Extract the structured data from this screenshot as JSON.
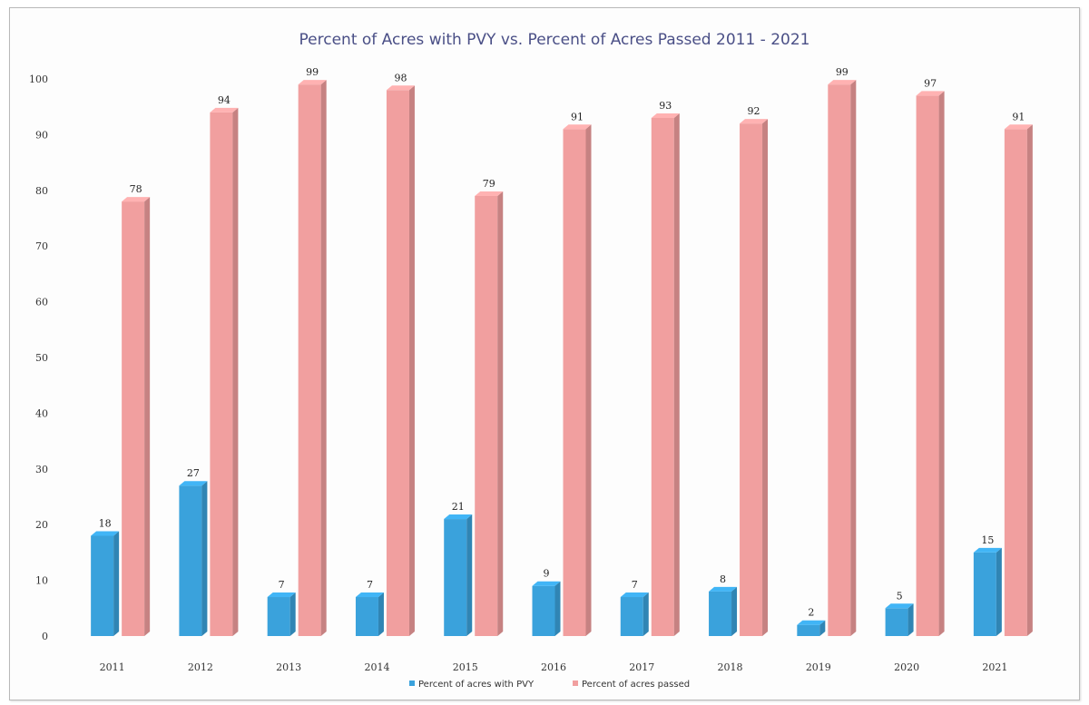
{
  "chart_data": {
    "type": "bar",
    "title": "Percent of Acres with PVY vs. Percent of Acres Passed 2011 - 2021",
    "categories": [
      "2011",
      "2012",
      "2013",
      "2014",
      "2015",
      "2016",
      "2017",
      "2018",
      "2019",
      "2020",
      "2021"
    ],
    "series": [
      {
        "name": "Percent of acres with PVY",
        "color": "#3aa2dc",
        "values": [
          18,
          27,
          7,
          7,
          21,
          9,
          7,
          8,
          2,
          5,
          15
        ]
      },
      {
        "name": "Percent of acres passed",
        "color": "#f19f9f",
        "values": [
          78,
          94,
          99,
          98,
          79,
          91,
          93,
          92,
          99,
          97,
          91
        ]
      }
    ],
    "ylim": [
      0,
      100
    ],
    "yticks": [
      0,
      10,
      20,
      30,
      40,
      50,
      60,
      70,
      80,
      90,
      100
    ],
    "grid": false,
    "legend_position": "bottom",
    "style": "3d-column"
  }
}
